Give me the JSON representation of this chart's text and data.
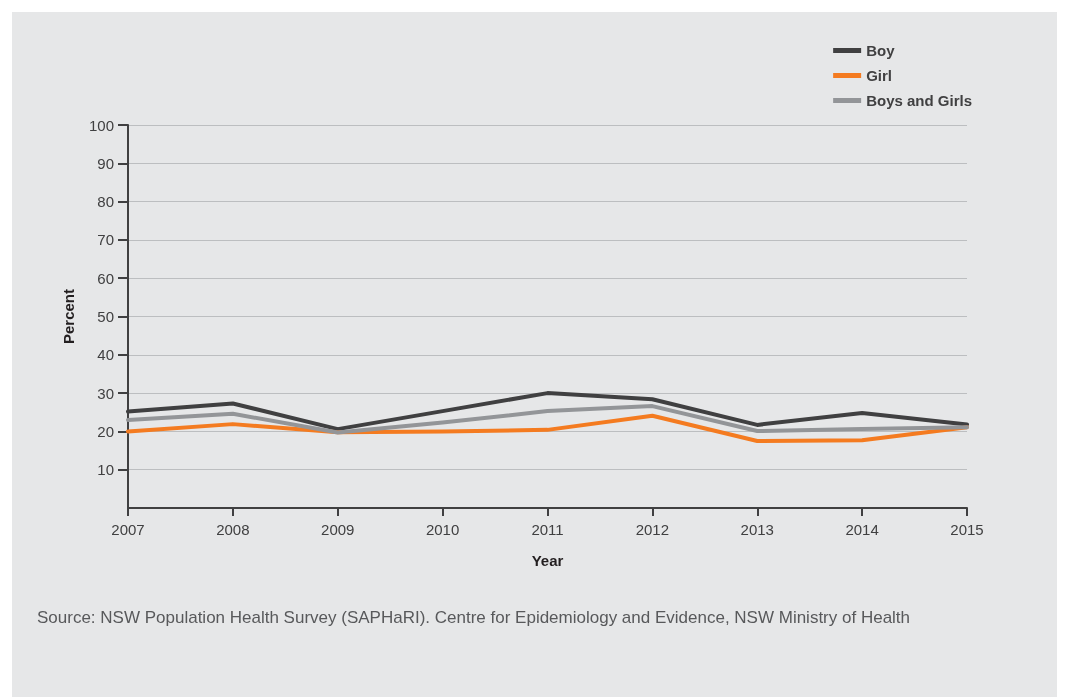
{
  "chart_data": {
    "type": "line",
    "xlabel": "Year",
    "ylabel": "Percent",
    "categories": [
      "2007",
      "2008",
      "2009",
      "2010",
      "2011",
      "2012",
      "2013",
      "2014",
      "2015"
    ],
    "series": [
      {
        "name": "Boy",
        "color": "#404041",
        "values": [
          25.2,
          27.3,
          20.6,
          25.3,
          30,
          28.4,
          21.7,
          24.8,
          21.8
        ]
      },
      {
        "name": "Girl",
        "color": "#f47b20",
        "values": [
          20,
          21.9,
          19.8,
          20,
          20.4,
          24.1,
          17.5,
          17.7,
          21.1
        ]
      },
      {
        "name": "Boys and Girls",
        "color": "#939598",
        "values": [
          23,
          24.6,
          19.7,
          22.3,
          25.3,
          26.6,
          20.1,
          20.6,
          21.1
        ]
      }
    ],
    "ylim": [
      0,
      100
    ],
    "yticks": [
      10,
      20,
      30,
      40,
      50,
      60,
      70,
      80,
      90,
      100
    ],
    "grid": "y",
    "legend": "top right",
    "marker": "none",
    "line_style": "solid",
    "annotations": [
      "Source: NSW Population Health Survey (SAPHaRI). Centre for Epidemiology and Evidence, NSW Ministry of Health"
    ]
  }
}
